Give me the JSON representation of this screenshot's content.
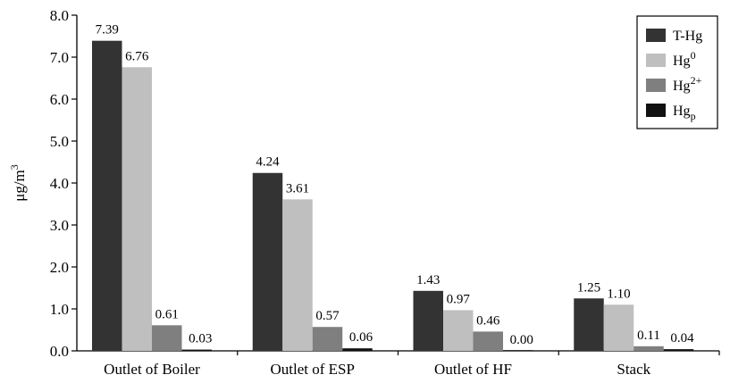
{
  "chart_data": {
    "type": "bar",
    "categories": [
      "Outlet of Boiler",
      "Outlet of ESP",
      "Outlet of HF",
      "Stack"
    ],
    "series": [
      {
        "name": "T-Hg",
        "values": [
          7.39,
          4.24,
          1.43,
          1.25
        ],
        "labels": [
          "7.39",
          "4.24",
          "1.43",
          "1.25"
        ],
        "color": "#333333"
      },
      {
        "name": "Hg0",
        "values": [
          6.76,
          3.61,
          0.97,
          1.1
        ],
        "labels": [
          "6.76",
          "3.61",
          "0.97",
          "1.10"
        ],
        "color": "#bfbfbf"
      },
      {
        "name": "Hg2+",
        "values": [
          0.61,
          0.57,
          0.46,
          0.11
        ],
        "labels": [
          "0.61",
          "0.57",
          "0.46",
          "0.11"
        ],
        "color": "#7f7f7f"
      },
      {
        "name": "Hgp",
        "values": [
          0.03,
          0.06,
          0.0,
          0.04
        ],
        "labels": [
          "0.03",
          "0.06",
          "0.00",
          "0.04"
        ],
        "color": "#111111"
      }
    ],
    "legend": {
      "position": "top-right",
      "entries": [
        {
          "base": "T-Hg",
          "sup": "",
          "sub": ""
        },
        {
          "base": "Hg",
          "sup": "0",
          "sub": ""
        },
        {
          "base": "Hg",
          "sup": "2+",
          "sub": ""
        },
        {
          "base": "Hg",
          "sup": "",
          "sub": "p"
        }
      ]
    },
    "ylabel": {
      "base": "μg/m",
      "sup": "3"
    },
    "xlabel": "",
    "ylim": [
      0,
      8
    ],
    "yticks": [
      "0.0",
      "1.0",
      "2.0",
      "3.0",
      "4.0",
      "5.0",
      "6.0",
      "7.0",
      "8.0"
    ],
    "grid": false
  }
}
